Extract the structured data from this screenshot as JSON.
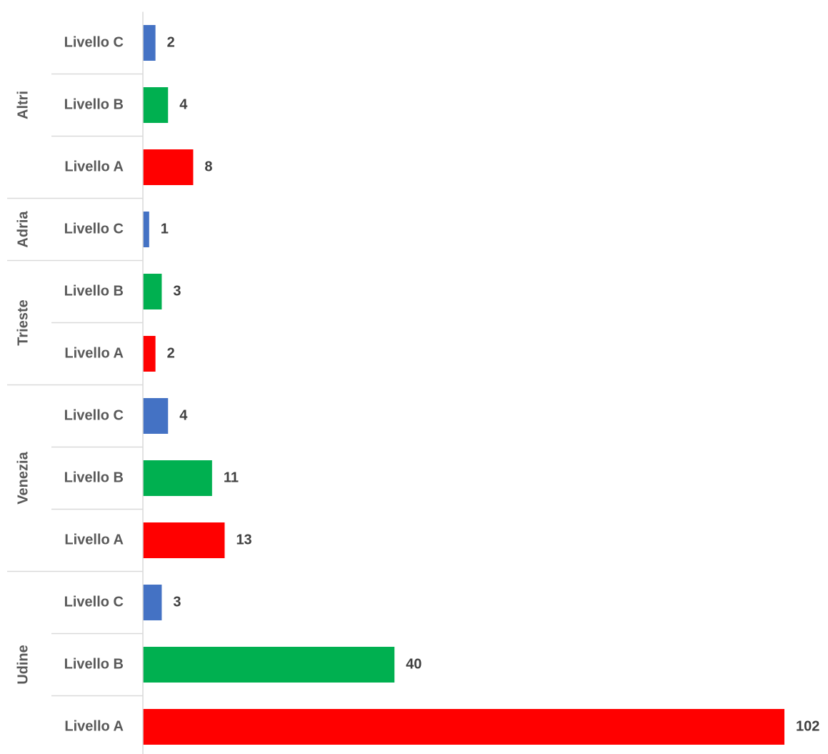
{
  "chart_data": {
    "type": "bar",
    "orientation": "horizontal",
    "groups": [
      {
        "name": "Altri",
        "categories": [
          "Livello C",
          "Livello B",
          "Livello A"
        ],
        "values": [
          2,
          4,
          8
        ]
      },
      {
        "name": "Adria",
        "categories": [
          "Livello C"
        ],
        "values": [
          1
        ]
      },
      {
        "name": "Trieste",
        "categories": [
          "Livello B",
          "Livello A"
        ],
        "values": [
          3,
          2
        ]
      },
      {
        "name": "Venezia",
        "categories": [
          "Livello C",
          "Livello B",
          "Livello A"
        ],
        "values": [
          4,
          11,
          13
        ]
      },
      {
        "name": "Udine",
        "categories": [
          "Livello C",
          "Livello B",
          "Livello A"
        ],
        "values": [
          3,
          40,
          102
        ]
      }
    ],
    "colors": {
      "Livello A": "#ff0000",
      "Livello B": "#00b050",
      "Livello C": "#4472c4"
    },
    "xlim": [
      0,
      102
    ]
  }
}
